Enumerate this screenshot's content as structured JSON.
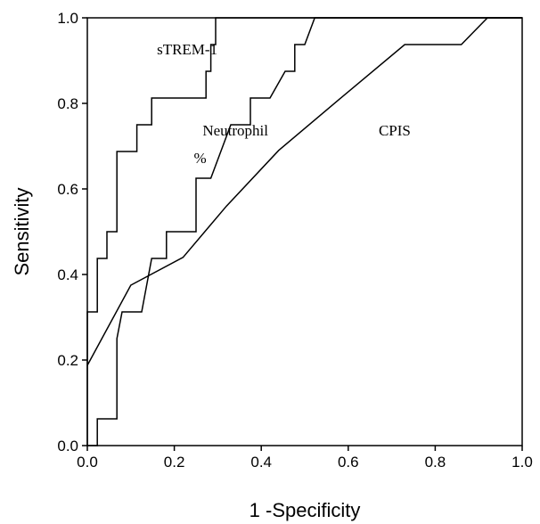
{
  "chart_data": {
    "type": "line",
    "title": "",
    "xlabel": "1 -Specificity",
    "ylabel": "Sensitivity",
    "xlim": [
      0.0,
      1.0
    ],
    "ylim": [
      0.0,
      1.0
    ],
    "x_ticks": [
      "0.0",
      "0.2",
      "0.4",
      "0.6",
      "0.8",
      "1.0"
    ],
    "y_ticks": [
      "0.0",
      "0.2",
      "0.4",
      "0.6",
      "0.8",
      "1.0"
    ],
    "grid": false,
    "legend": "none",
    "series": [
      {
        "name": "sTREM-1",
        "points": [
          [
            0.0,
            0.0
          ],
          [
            0.0,
            0.3125
          ],
          [
            0.023,
            0.3125
          ],
          [
            0.023,
            0.4375
          ],
          [
            0.045,
            0.4375
          ],
          [
            0.045,
            0.5
          ],
          [
            0.068,
            0.5
          ],
          [
            0.068,
            0.6875
          ],
          [
            0.114,
            0.6875
          ],
          [
            0.114,
            0.75
          ],
          [
            0.148,
            0.75
          ],
          [
            0.148,
            0.8125
          ],
          [
            0.273,
            0.8125
          ],
          [
            0.273,
            0.875
          ],
          [
            0.284,
            0.875
          ],
          [
            0.284,
            0.9375
          ],
          [
            0.295,
            0.9375
          ],
          [
            0.295,
            1.0
          ],
          [
            1.0,
            1.0
          ]
        ]
      },
      {
        "name": "Neutrophil %",
        "points": [
          [
            0.0,
            0.0
          ],
          [
            0.023,
            0.0
          ],
          [
            0.023,
            0.0625
          ],
          [
            0.068,
            0.0625
          ],
          [
            0.068,
            0.25
          ],
          [
            0.08,
            0.3125
          ],
          [
            0.125,
            0.3125
          ],
          [
            0.148,
            0.4375
          ],
          [
            0.182,
            0.4375
          ],
          [
            0.182,
            0.5
          ],
          [
            0.25,
            0.5
          ],
          [
            0.25,
            0.625
          ],
          [
            0.284,
            0.625
          ],
          [
            0.33,
            0.75
          ],
          [
            0.375,
            0.75
          ],
          [
            0.375,
            0.8125
          ],
          [
            0.42,
            0.8125
          ],
          [
            0.455,
            0.875
          ],
          [
            0.477,
            0.875
          ],
          [
            0.477,
            0.9375
          ],
          [
            0.5,
            0.9375
          ],
          [
            0.523,
            1.0
          ],
          [
            1.0,
            1.0
          ]
        ]
      },
      {
        "name": "CPIS",
        "points": [
          [
            0.0,
            0.1875
          ],
          [
            0.1,
            0.375
          ],
          [
            0.22,
            0.44
          ],
          [
            0.32,
            0.56
          ],
          [
            0.44,
            0.69
          ],
          [
            0.58,
            0.81
          ],
          [
            0.73,
            0.9375
          ],
          [
            0.86,
            0.9375
          ],
          [
            0.92,
            1.0
          ],
          [
            1.0,
            1.0
          ]
        ]
      }
    ],
    "annotations": [
      {
        "text": "sTREM-1",
        "x": 0.16,
        "y": 0.915
      },
      {
        "text": "Neutrophil",
        "x": 0.265,
        "y": 0.725
      },
      {
        "text": "%",
        "x": 0.245,
        "y": 0.66
      },
      {
        "text": "CPIS",
        "x": 0.67,
        "y": 0.725
      }
    ]
  }
}
